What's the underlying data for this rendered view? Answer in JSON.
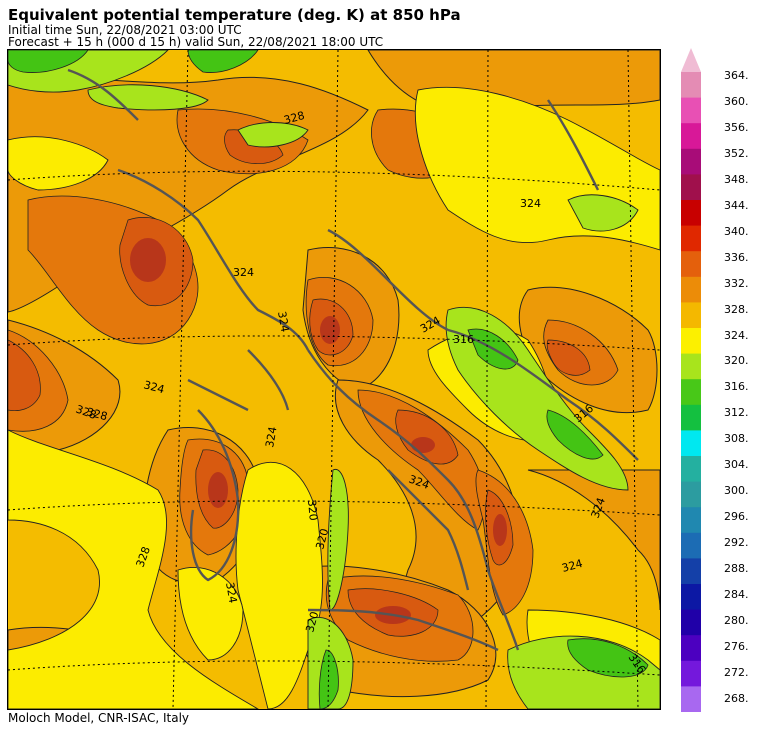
{
  "header": {
    "title": "Equivalent potential temperature (deg. K) at 850 hPa",
    "initial_time": "Initial time  Sun, 22/08/2021  03:00 UTC",
    "forecast": "Forecast  +  15 h  (000 d 15 h)  valid Sun, 22/08/2021 18:00 UTC"
  },
  "footer": {
    "credit": "Moloch Model, CNR-ISAC, Italy"
  },
  "map": {
    "contour_labels": [
      "328",
      "328",
      "324",
      "324",
      "324",
      "324",
      "324",
      "324",
      "324",
      "324",
      "320",
      "320",
      "320",
      "316",
      "316",
      "316",
      "324",
      "324",
      "328",
      "328"
    ]
  },
  "legend": {
    "labels": [
      "364.",
      "360.",
      "356.",
      "352.",
      "348.",
      "344.",
      "340.",
      "336.",
      "332.",
      "328.",
      "324.",
      "320.",
      "316.",
      "312.",
      "308.",
      "304.",
      "300.",
      "296.",
      "292.",
      "288.",
      "284.",
      "280.",
      "276.",
      "272.",
      "268."
    ],
    "colors": [
      "#e48cb4",
      "#e850b4",
      "#d81898",
      "#a80c78",
      "#a0104c",
      "#c80000",
      "#e02800",
      "#e4600c",
      "#ec8c08",
      "#f4b800",
      "#fcf000",
      "#a8e41c",
      "#48c818",
      "#14c040",
      "#00e8f0",
      "#24b0a0",
      "#2c9ca0",
      "#2088b0",
      "#1c6cb4",
      "#1440a8",
      "#0c18a4",
      "#2000a8",
      "#4c00c0",
      "#7418dc",
      "#a868f0"
    ],
    "top_arrow_color": "#f0bcd4",
    "bottom_arrow_color": "#c080f4"
  },
  "palette": {
    "t336": "#d85a10",
    "t332": "#e4780c",
    "t328": "#ec9a08",
    "t324": "#f4bc00",
    "t320": "#fcec00",
    "t316": "#a8e41c",
    "t312": "#44c414",
    "t340": "#b8361a",
    "coast": "#555555"
  }
}
